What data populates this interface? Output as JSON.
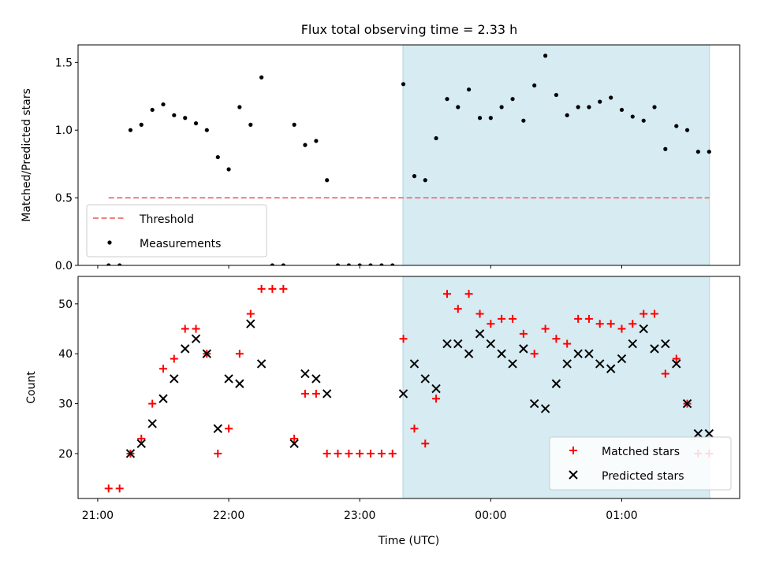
{
  "title": "Flux total observing time = 2.33 h",
  "colors": {
    "shade": "#add8e6",
    "threshold": "#f08080",
    "matched": "#ff0000",
    "predicted": "#000000",
    "measurements": "#000000"
  },
  "chart_data": [
    {
      "type": "scatter",
      "title": "Flux total observing time = 2.33 h",
      "xlabel": "",
      "ylabel": "Matched/Predicted stars",
      "ylim": [
        0,
        1.63
      ],
      "y_ticks": [
        0.0,
        0.5,
        1.0,
        1.5
      ],
      "y_tick_labels": [
        "0.0",
        "0.5",
        "1.0",
        "1.5"
      ],
      "shaded_span": {
        "x_start_h": 23.33,
        "x_end_h": 25.67
      },
      "legend_position": "lower-left",
      "series": [
        {
          "name": "Threshold",
          "kind": "dashed-line",
          "points": [
            [
              21.083,
              0.5
            ],
            [
              25.67,
              0.5
            ]
          ]
        },
        {
          "name": "Measurements",
          "kind": "dot",
          "points": [
            [
              21.083,
              0
            ],
            [
              21.167,
              0
            ],
            [
              21.25,
              1.0
            ],
            [
              21.333,
              1.04
            ],
            [
              21.417,
              1.15
            ],
            [
              21.5,
              1.19
            ],
            [
              21.583,
              1.11
            ],
            [
              21.667,
              1.09
            ],
            [
              21.75,
              1.05
            ],
            [
              21.833,
              1.0
            ],
            [
              21.917,
              0.8
            ],
            [
              22.0,
              0.71
            ],
            [
              22.083,
              1.17
            ],
            [
              22.167,
              1.04
            ],
            [
              22.25,
              1.39
            ],
            [
              22.333,
              0
            ],
            [
              22.417,
              0
            ],
            [
              22.5,
              1.04
            ],
            [
              22.583,
              0.89
            ],
            [
              22.667,
              0.92
            ],
            [
              22.75,
              0.63
            ],
            [
              22.833,
              0
            ],
            [
              22.917,
              0
            ],
            [
              23.0,
              0
            ],
            [
              23.083,
              0
            ],
            [
              23.167,
              0
            ],
            [
              23.25,
              0
            ],
            [
              23.333,
              1.34
            ],
            [
              23.417,
              0.66
            ],
            [
              23.5,
              0.63
            ],
            [
              23.583,
              0.94
            ],
            [
              23.667,
              1.23
            ],
            [
              23.75,
              1.17
            ],
            [
              23.833,
              1.3
            ],
            [
              23.917,
              1.09
            ],
            [
              24.0,
              1.09
            ],
            [
              24.083,
              1.17
            ],
            [
              24.167,
              1.23
            ],
            [
              24.25,
              1.07
            ],
            [
              24.333,
              1.33
            ],
            [
              24.417,
              1.55
            ],
            [
              24.5,
              1.26
            ],
            [
              24.583,
              1.11
            ],
            [
              24.667,
              1.17
            ],
            [
              24.75,
              1.17
            ],
            [
              24.833,
              1.21
            ],
            [
              24.917,
              1.24
            ],
            [
              25.0,
              1.15
            ],
            [
              25.083,
              1.1
            ],
            [
              25.167,
              1.07
            ],
            [
              25.25,
              1.17
            ],
            [
              25.333,
              0.86
            ],
            [
              25.417,
              1.03
            ],
            [
              25.5,
              1.0
            ],
            [
              25.583,
              0.84
            ],
            [
              25.667,
              0.84
            ]
          ]
        }
      ]
    },
    {
      "type": "scatter",
      "title": "",
      "xlabel": "Time (UTC)",
      "ylabel": "Count",
      "xlim_h": [
        20.85,
        25.9
      ],
      "ylim": [
        11,
        55.5
      ],
      "x_ticks_h": [
        21,
        22,
        23,
        24,
        25
      ],
      "x_tick_labels": [
        "21:00",
        "22:00",
        "23:00",
        "00:00",
        "01:00"
      ],
      "y_ticks": [
        20,
        30,
        40,
        50
      ],
      "y_tick_labels": [
        "20",
        "30",
        "40",
        "50"
      ],
      "shaded_span": {
        "x_start_h": 23.33,
        "x_end_h": 25.67
      },
      "legend_position": "lower-right",
      "series": [
        {
          "name": "Matched stars",
          "marker": "+",
          "points": [
            [
              21.083,
              13
            ],
            [
              21.167,
              13
            ],
            [
              21.25,
              20
            ],
            [
              21.333,
              23
            ],
            [
              21.417,
              30
            ],
            [
              21.5,
              37
            ],
            [
              21.583,
              39
            ],
            [
              21.667,
              45
            ],
            [
              21.75,
              45
            ],
            [
              21.833,
              40
            ],
            [
              21.917,
              20
            ],
            [
              22.0,
              25
            ],
            [
              22.083,
              40
            ],
            [
              22.167,
              48
            ],
            [
              22.25,
              53
            ],
            [
              22.333,
              53
            ],
            [
              22.417,
              53
            ],
            [
              22.5,
              23
            ],
            [
              22.583,
              32
            ],
            [
              22.667,
              32
            ],
            [
              22.75,
              20
            ],
            [
              22.833,
              20
            ],
            [
              22.917,
              20
            ],
            [
              23.0,
              20
            ],
            [
              23.083,
              20
            ],
            [
              23.167,
              20
            ],
            [
              23.25,
              20
            ],
            [
              23.333,
              43
            ],
            [
              23.417,
              25
            ],
            [
              23.5,
              22
            ],
            [
              23.583,
              31
            ],
            [
              23.667,
              52
            ],
            [
              23.75,
              49
            ],
            [
              23.833,
              52
            ],
            [
              23.917,
              48
            ],
            [
              24.0,
              46
            ],
            [
              24.083,
              47
            ],
            [
              24.167,
              47
            ],
            [
              24.25,
              44
            ],
            [
              24.333,
              40
            ],
            [
              24.417,
              45
            ],
            [
              24.5,
              43
            ],
            [
              24.583,
              42
            ],
            [
              24.667,
              47
            ],
            [
              24.75,
              47
            ],
            [
              24.833,
              46
            ],
            [
              24.917,
              46
            ],
            [
              25.0,
              45
            ],
            [
              25.083,
              46
            ],
            [
              25.167,
              48
            ],
            [
              25.25,
              48
            ],
            [
              25.333,
              36
            ],
            [
              25.417,
              39
            ],
            [
              25.5,
              30
            ],
            [
              25.583,
              20
            ],
            [
              25.667,
              20
            ]
          ]
        },
        {
          "name": "Predicted stars",
          "marker": "x",
          "points": [
            [
              21.25,
              20
            ],
            [
              21.333,
              22
            ],
            [
              21.417,
              26
            ],
            [
              21.5,
              31
            ],
            [
              21.583,
              35
            ],
            [
              21.667,
              41
            ],
            [
              21.75,
              43
            ],
            [
              21.833,
              40
            ],
            [
              21.917,
              25
            ],
            [
              22.0,
              35
            ],
            [
              22.083,
              34
            ],
            [
              22.167,
              46
            ],
            [
              22.25,
              38
            ],
            [
              22.5,
              22
            ],
            [
              22.583,
              36
            ],
            [
              22.667,
              35
            ],
            [
              22.75,
              32
            ],
            [
              23.333,
              32
            ],
            [
              23.417,
              38
            ],
            [
              23.5,
              35
            ],
            [
              23.583,
              33
            ],
            [
              23.667,
              42
            ],
            [
              23.75,
              42
            ],
            [
              23.833,
              40
            ],
            [
              23.917,
              44
            ],
            [
              24.0,
              42
            ],
            [
              24.083,
              40
            ],
            [
              24.167,
              38
            ],
            [
              24.25,
              41
            ],
            [
              24.333,
              30
            ],
            [
              24.417,
              29
            ],
            [
              24.5,
              34
            ],
            [
              24.583,
              38
            ],
            [
              24.667,
              40
            ],
            [
              24.75,
              40
            ],
            [
              24.833,
              38
            ],
            [
              24.917,
              37
            ],
            [
              25.0,
              39
            ],
            [
              25.083,
              42
            ],
            [
              25.167,
              45
            ],
            [
              25.25,
              41
            ],
            [
              25.333,
              42
            ],
            [
              25.417,
              38
            ],
            [
              25.5,
              30
            ],
            [
              25.583,
              24
            ],
            [
              25.667,
              24
            ]
          ]
        }
      ]
    }
  ]
}
